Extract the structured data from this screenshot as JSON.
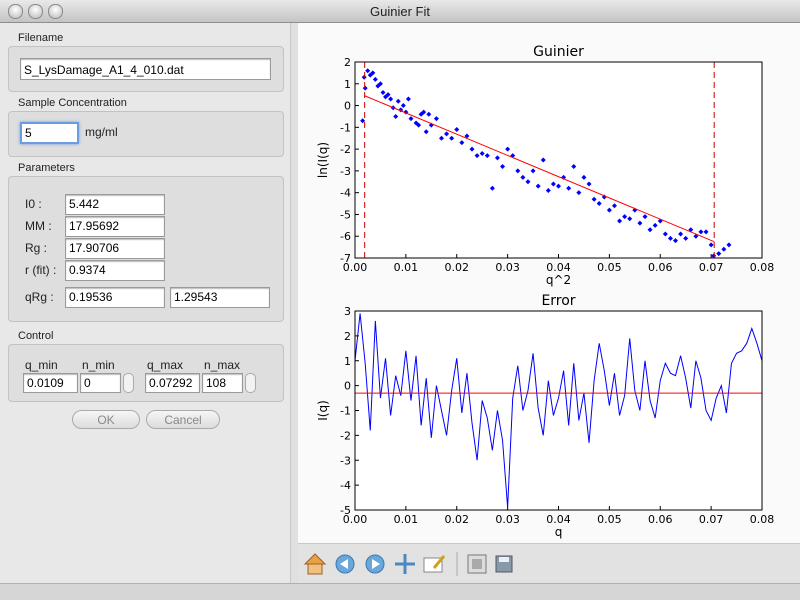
{
  "window": {
    "title": "Guinier Fit"
  },
  "panel": {
    "filename": {
      "label": "Filename",
      "value": "S_LysDamage_A1_4_010.dat"
    },
    "concentration": {
      "label": "Sample Concentration",
      "value": "5",
      "unit": "mg/ml"
    },
    "parameters": {
      "label": "Parameters",
      "rows": [
        {
          "label": "I0 :",
          "values": [
            "5.442"
          ]
        },
        {
          "label": "MM :",
          "values": [
            "17.95692"
          ]
        },
        {
          "label": "Rg :",
          "values": [
            "17.90706"
          ]
        },
        {
          "label": "r (fit) :",
          "values": [
            "0.9374"
          ]
        },
        {
          "label": "qRg :",
          "values": [
            "0.19536",
            "1.29543"
          ]
        }
      ]
    },
    "control": {
      "label": "Control",
      "columns": [
        {
          "label": "q_min",
          "value": "0.0109"
        },
        {
          "label": "n_min",
          "value": "0"
        },
        {
          "label": "q_max",
          "value": "0.07292"
        },
        {
          "label": "n_max",
          "value": "108"
        }
      ]
    },
    "buttons": [
      "OK",
      "Cancel"
    ]
  },
  "chart_data": [
    {
      "type": "scatter",
      "title": "Guinier",
      "x_label": "q^2",
      "y_label": "ln(I(q)",
      "xlim": [
        0,
        0.08
      ],
      "xticks": [
        {
          "value": 0,
          "label": "0.00"
        },
        0.01,
        0.02,
        0.03,
        0.04,
        0.05,
        0.06,
        0.07,
        0.08
      ],
      "ylim": [
        -7,
        2
      ],
      "yticks": [
        -7,
        -6,
        -5,
        -4,
        -3,
        -2,
        -1,
        0,
        1,
        2
      ],
      "series": [
        {
          "type": "scatter",
          "color": "#0000ff",
          "x": [
            0.0015,
            0.0018,
            0.002,
            0.0025,
            0.003,
            0.0035,
            0.004,
            0.0045,
            0.005,
            0.0055,
            0.006,
            0.0065,
            0.007,
            0.0075,
            0.008,
            0.0085,
            0.009,
            0.0095,
            0.01,
            0.0105,
            0.011,
            0.012,
            0.0125,
            0.013,
            0.0135,
            0.014,
            0.0145,
            0.015,
            0.016,
            0.017,
            0.018,
            0.019,
            0.02,
            0.021,
            0.022,
            0.023,
            0.024,
            0.025,
            0.026,
            0.027,
            0.028,
            0.029,
            0.03,
            0.031,
            0.032,
            0.033,
            0.034,
            0.035,
            0.036,
            0.037,
            0.038,
            0.039,
            0.04,
            0.041,
            0.042,
            0.043,
            0.044,
            0.045,
            0.046,
            0.047,
            0.048,
            0.049,
            0.05,
            0.051,
            0.052,
            0.053,
            0.054,
            0.055,
            0.056,
            0.057,
            0.058,
            0.059,
            0.06,
            0.061,
            0.062,
            0.063,
            0.064,
            0.065,
            0.066,
            0.067,
            0.068,
            0.069,
            0.07,
            0.0705,
            0.0715,
            0.0725,
            0.0735
          ],
          "values": [
            -0.7,
            1.3,
            0.8,
            1.6,
            1.4,
            1.5,
            1.2,
            0.9,
            1.0,
            0.6,
            0.4,
            0.5,
            0.3,
            -0.1,
            -0.5,
            0.2,
            -0.2,
            0.0,
            -0.3,
            0.3,
            -0.6,
            -0.8,
            -0.9,
            -0.4,
            -0.3,
            -1.2,
            -0.4,
            -0.9,
            -0.6,
            -1.5,
            -1.3,
            -1.5,
            -1.1,
            -1.7,
            -1.4,
            -2.0,
            -2.3,
            -2.2,
            -2.3,
            -3.8,
            -2.4,
            -2.8,
            -2.0,
            -2.3,
            -3.0,
            -3.3,
            -3.5,
            -3.0,
            -3.7,
            -2.5,
            -3.9,
            -3.6,
            -3.7,
            -3.3,
            -3.8,
            -2.8,
            -4.0,
            -3.3,
            -3.6,
            -4.3,
            -4.5,
            -4.2,
            -4.8,
            -4.6,
            -5.3,
            -5.1,
            -5.2,
            -4.8,
            -5.4,
            -5.1,
            -5.7,
            -5.5,
            -5.3,
            -5.9,
            -6.1,
            -6.2,
            -5.9,
            -6.1,
            -5.7,
            -6.0,
            -5.8,
            -5.8,
            -6.4,
            -6.9,
            -6.8,
            -6.6,
            -6.4
          ]
        },
        {
          "type": "line",
          "color": "#ff0000",
          "x": [
            0.0019,
            0.0706
          ],
          "values": [
            0.45,
            -6.25
          ]
        }
      ],
      "vlines": {
        "x": [
          0.0019,
          0.0706
        ],
        "color": "#cc0000",
        "dashed": true
      }
    },
    {
      "type": "line",
      "title": "Error",
      "x_label": "q",
      "y_label": "I(q)",
      "xlim": [
        0,
        0.08
      ],
      "xticks": [
        {
          "value": 0,
          "label": "0.00"
        },
        0.01,
        0.02,
        0.03,
        0.04,
        0.05,
        0.06,
        0.07,
        0.08
      ],
      "ylim": [
        -5,
        3
      ],
      "yticks": [
        -5,
        -4,
        -3,
        -2,
        -1,
        0,
        1,
        2,
        3
      ],
      "series": [
        {
          "type": "line",
          "color": "#0000ff",
          "x": [
            0,
            0.001,
            0.002,
            0.003,
            0.004,
            0.005,
            0.006,
            0.007,
            0.008,
            0.009,
            0.01,
            0.011,
            0.012,
            0.013,
            0.014,
            0.015,
            0.016,
            0.017,
            0.018,
            0.019,
            0.02,
            0.021,
            0.022,
            0.023,
            0.024,
            0.025,
            0.026,
            0.027,
            0.028,
            0.029,
            0.03,
            0.031,
            0.032,
            0.033,
            0.034,
            0.035,
            0.036,
            0.037,
            0.038,
            0.039,
            0.04,
            0.041,
            0.042,
            0.043,
            0.044,
            0.045,
            0.046,
            0.047,
            0.048,
            0.049,
            0.05,
            0.051,
            0.052,
            0.053,
            0.054,
            0.055,
            0.056,
            0.057,
            0.058,
            0.059,
            0.06,
            0.061,
            0.062,
            0.063,
            0.064,
            0.065,
            0.066,
            0.067,
            0.068,
            0.069,
            0.07,
            0.071,
            0.072,
            0.073,
            0.074,
            0.075,
            0.076,
            0.077,
            0.078,
            0.079,
            0.08
          ],
          "values": [
            1.0,
            2.9,
            0.9,
            -1.8,
            2.6,
            -0.5,
            1.1,
            -1.2,
            0.4,
            -0.4,
            1.4,
            -0.6,
            1.2,
            -1.6,
            0.3,
            -2.1,
            0.0,
            -1.0,
            -2.0,
            -0.2,
            1.1,
            -1.1,
            0.5,
            -1.5,
            -3.0,
            -0.6,
            -1.3,
            -2.6,
            -1.0,
            -2.2,
            -4.9,
            -0.5,
            0.8,
            -1.0,
            -0.2,
            1.3,
            -0.9,
            -2.0,
            0.2,
            -1.2,
            -0.5,
            0.6,
            -1.6,
            0.9,
            -1.4,
            -0.3,
            -2.3,
            0.2,
            1.7,
            0.6,
            -0.8,
            0.5,
            -1.2,
            -0.4,
            1.9,
            -0.2,
            -1.0,
            1.0,
            -0.6,
            -1.3,
            0.2,
            0.9,
            0.5,
            0.4,
            1.2,
            0.3,
            -0.9,
            1.0,
            0.3,
            -1.0,
            -1.4,
            -0.5,
            0.0,
            -1.1,
            0.9,
            1.3,
            1.4,
            1.7,
            2.3,
            1.7,
            1.0
          ]
        },
        {
          "type": "line",
          "color": "#ff0000",
          "x": [
            0,
            0.08
          ],
          "values": [
            -0.3,
            -0.3
          ]
        }
      ]
    }
  ]
}
